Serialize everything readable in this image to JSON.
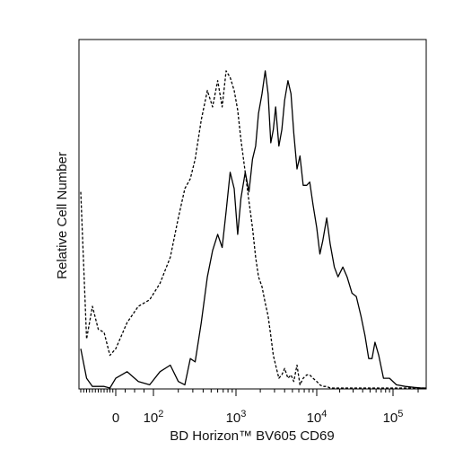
{
  "chart_data": {
    "type": "line",
    "title": "",
    "xlabel": "BD Horizon™ BV605 CD69",
    "ylabel": "Relative Cell Number",
    "x_scale": "biexponential",
    "xlim": [
      -300,
      250000
    ],
    "ylim": [
      0,
      100
    ],
    "grid": false,
    "legend": "none",
    "x_ticks": [
      {
        "value": 0,
        "base": "0",
        "exp": ""
      },
      {
        "value": 100,
        "base": "10",
        "exp": "2"
      },
      {
        "value": 1000,
        "base": "10",
        "exp": "3"
      },
      {
        "value": 10000,
        "base": "10",
        "exp": "4"
      },
      {
        "value": 100000,
        "base": "10",
        "exp": "5"
      }
    ],
    "series": [
      {
        "style": "solid",
        "color": "#000000",
        "x": [
          -300,
          -250,
          -200,
          -150,
          -100,
          -50,
          0,
          30,
          60,
          90,
          120,
          160,
          200,
          240,
          280,
          320,
          380,
          450,
          520,
          600,
          680,
          760,
          850,
          950,
          1050,
          1150,
          1300,
          1450,
          1600,
          1750,
          1900,
          2100,
          2300,
          2500,
          2700,
          2900,
          3100,
          3400,
          3700,
          4000,
          4400,
          4800,
          5200,
          5700,
          6200,
          6800,
          7500,
          8200,
          9000,
          10000,
          11000,
          12000,
          13500,
          15000,
          17000,
          19000,
          22000,
          25000,
          29000,
          33000,
          38000,
          43000,
          48000,
          53000,
          58000,
          65000,
          75000,
          90000,
          110000,
          140000,
          180000,
          220000,
          250000
        ],
        "y": [
          12,
          3,
          0.5,
          0.5,
          0.5,
          0,
          3,
          5,
          2,
          1,
          5,
          7,
          2,
          1,
          9,
          8,
          20,
          34,
          42,
          47,
          43,
          54,
          66,
          61,
          47,
          58,
          66,
          60,
          70,
          74,
          84,
          90,
          97,
          90,
          75,
          79,
          86,
          74,
          79,
          88,
          94,
          90,
          78,
          67,
          71,
          62,
          62,
          63,
          56,
          49,
          41,
          45,
          52,
          44,
          37,
          34,
          37,
          34,
          29,
          28,
          22,
          16,
          9,
          9,
          14,
          10,
          3,
          3,
          1,
          0.5,
          0.2,
          0,
          0
        ]
      },
      {
        "style": "dashed",
        "color": "#000000",
        "x": [
          -300,
          -250,
          -200,
          -150,
          -100,
          -50,
          0,
          30,
          60,
          90,
          120,
          160,
          200,
          240,
          280,
          320,
          380,
          450,
          520,
          600,
          680,
          760,
          850,
          950,
          1050,
          1150,
          1300,
          1450,
          1600,
          1750,
          1900,
          2100,
          2300,
          2500,
          2700,
          2900,
          3100,
          3400,
          3700,
          4000,
          4400,
          4800,
          5200,
          5700,
          6200,
          6800,
          7500,
          8200,
          9000,
          10000,
          11000,
          12000,
          13500,
          15000,
          17000,
          19000,
          22000,
          25000,
          29000,
          33000,
          38000,
          43000,
          48000,
          53000,
          58000,
          65000,
          75000,
          90000,
          110000,
          140000,
          180000,
          220000,
          250000
        ],
        "y": [
          60,
          15,
          25,
          18,
          17,
          10,
          12,
          20,
          25,
          27,
          32,
          40,
          52,
          61,
          64,
          70,
          82,
          91,
          86,
          94,
          86,
          97,
          95,
          91,
          85,
          76,
          66,
          57,
          49,
          40,
          34,
          31,
          26,
          22,
          16,
          10,
          7,
          3,
          4,
          6,
          3,
          4,
          2,
          7,
          1,
          3,
          4,
          4,
          3,
          2,
          1,
          0.5,
          0.5,
          0,
          0,
          0,
          0,
          0,
          0,
          0,
          0,
          0,
          0,
          0,
          0,
          0,
          0,
          0,
          0,
          0,
          0,
          0,
          0
        ]
      }
    ]
  }
}
